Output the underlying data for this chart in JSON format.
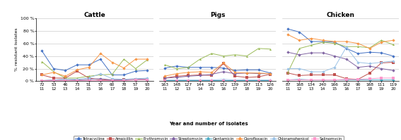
{
  "cattle": {
    "x_labels_top": [
      "72",
      "53",
      "46",
      "73",
      "51",
      "57",
      "60",
      "78",
      "57",
      "93"
    ],
    "x_labels_bottom": [
      "11",
      "12",
      "13",
      "14",
      "15",
      "16",
      "17",
      "18",
      "19",
      "20"
    ],
    "Tetracycline": [
      48,
      20,
      17,
      26,
      26,
      35,
      10,
      10,
      16,
      17
    ],
    "Ampicillin": [
      10,
      5,
      5,
      16,
      5,
      2,
      2,
      3,
      3,
      3
    ],
    "Erythromycin": [
      31,
      15,
      5,
      5,
      8,
      10,
      11,
      35,
      20,
      34
    ],
    "Streptomycin": [
      1,
      2,
      3,
      2,
      3,
      4,
      2,
      2,
      3,
      3
    ],
    "Gentamicin": [
      1,
      1,
      1,
      1,
      1,
      1,
      1,
      1,
      1,
      1
    ],
    "Ciprofloxacin": [
      10,
      14,
      8,
      18,
      22,
      44,
      30,
      21,
      35,
      35
    ],
    "Chloramphenicol": [
      1,
      2,
      3,
      3,
      5,
      12,
      4,
      3,
      4,
      5
    ],
    "Salinomycin": [
      1,
      1,
      1,
      1,
      1,
      1,
      1,
      1,
      2,
      2
    ]
  },
  "pigs": {
    "x_labels_top": [
      "163",
      "148",
      "127",
      "144",
      "142",
      "152",
      "139",
      "197",
      "113",
      "126"
    ],
    "x_labels_bottom": [
      "11",
      "12",
      "13",
      "14",
      "15",
      "16",
      "17",
      "18",
      "19",
      "20"
    ],
    "Tetracycline": [
      21,
      24,
      22,
      22,
      22,
      21,
      17,
      18,
      18,
      13
    ],
    "Ampicillin": [
      5,
      8,
      9,
      10,
      9,
      28,
      8,
      6,
      7,
      11
    ],
    "Erythromycin": [
      26,
      20,
      22,
      35,
      44,
      40,
      42,
      40,
      52,
      51
    ],
    "Streptomycin": [
      5,
      6,
      8,
      9,
      11,
      15,
      12,
      13,
      12,
      12
    ],
    "Gentamicin": [
      2,
      2,
      2,
      2,
      2,
      2,
      2,
      2,
      2,
      2
    ],
    "Ciprofloxacin": [
      8,
      12,
      14,
      15,
      14,
      29,
      14,
      13,
      13,
      12
    ],
    "Chloramphenicol": [
      2,
      2,
      2,
      2,
      2,
      3,
      2,
      2,
      2,
      2
    ],
    "Salinomycin": [
      1,
      1,
      1,
      1,
      1,
      1,
      1,
      1,
      1,
      1
    ]
  },
  "chicken": {
    "x_labels_top": [
      "87",
      "168",
      "134",
      "240",
      "166",
      "162",
      "90",
      "168",
      "111",
      "119"
    ],
    "x_labels_bottom": [
      "11",
      "12",
      "13",
      "14",
      "15",
      "16",
      "17",
      "18",
      "19",
      "20"
    ],
    "Tetracycline": [
      83,
      78,
      63,
      63,
      62,
      52,
      44,
      46,
      45,
      40
    ],
    "Ampicillin": [
      13,
      9,
      10,
      10,
      10,
      4,
      3,
      13,
      29,
      30
    ],
    "Erythromycin": [
      14,
      52,
      57,
      62,
      60,
      55,
      55,
      53,
      65,
      58
    ],
    "Streptomycin": [
      46,
      42,
      45,
      45,
      40,
      35,
      22,
      24,
      20,
      17
    ],
    "Gentamicin": [
      2,
      3,
      2,
      2,
      2,
      2,
      2,
      2,
      2,
      2
    ],
    "Ciprofloxacin": [
      74,
      65,
      68,
      65,
      63,
      63,
      60,
      52,
      62,
      65
    ],
    "Chloramphenicol": [
      20,
      20,
      15,
      15,
      22,
      54,
      30,
      28,
      30,
      32
    ],
    "Salinomycin": [
      2,
      2,
      2,
      2,
      2,
      3,
      3,
      4,
      5,
      5
    ]
  },
  "colors": {
    "Tetracycline": "#4472C4",
    "Ampicillin": "#C0504D",
    "Erythromycin": "#9BBB59",
    "Streptomycin": "#8064A2",
    "Gentamicin": "#4BACC6",
    "Ciprofloxacin": "#F79646",
    "Chloramphenicol": "#9DC3E6",
    "Salinomycin": "#FF99CC"
  },
  "markers": {
    "Tetracycline": "D",
    "Ampicillin": "s",
    "Erythromycin": "^",
    "Streptomycin": "D",
    "Gentamicin": "D",
    "Ciprofloxacin": "D",
    "Chloramphenicol": "D",
    "Salinomycin": "s"
  },
  "ylim": [
    0,
    100
  ],
  "yticks": [
    0,
    20,
    40,
    60,
    80,
    100
  ],
  "ytick_labels": [
    "0 %",
    "20 %",
    "40 %",
    "60 %",
    "80 %",
    "100 %"
  ],
  "ylabel": "% resistant isolates",
  "xlabel": "Year and number of isolates",
  "titles": [
    "Cattle",
    "Pigs",
    "Chicken"
  ]
}
